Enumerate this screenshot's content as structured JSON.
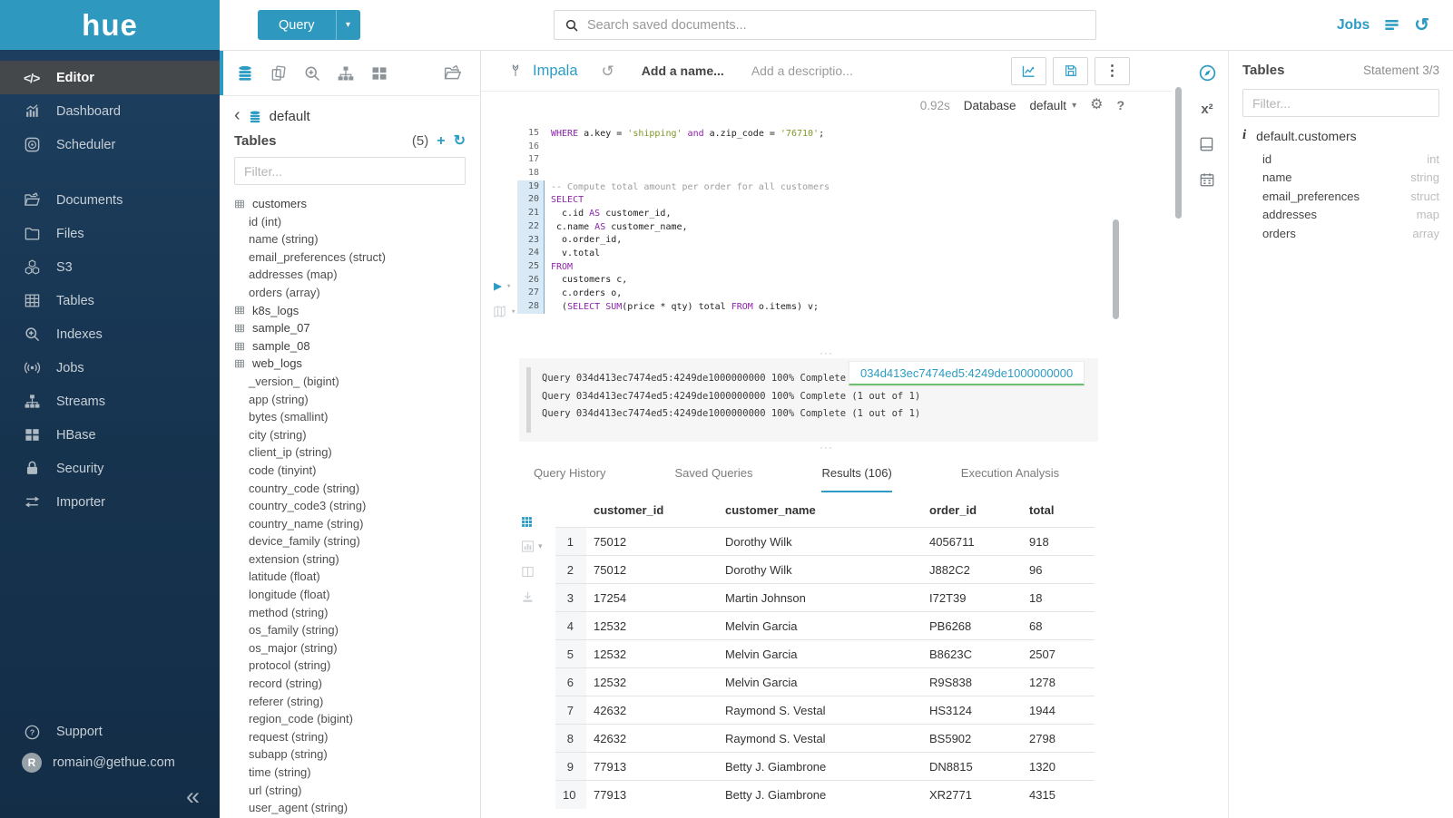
{
  "brand": {
    "logo_text": "hue"
  },
  "topbar": {
    "query_button_label": "Query",
    "search_placeholder": "Search saved documents...",
    "jobs_label": "Jobs"
  },
  "icons": {
    "code": "</>",
    "back": "‹",
    "collapse": "«",
    "plus": "+",
    "refresh": "↻",
    "caret": "▾",
    "play": "▶",
    "more": "⋮",
    "gear": "⚙",
    "help": "?",
    "history": "↺",
    "superscript": "x²",
    "info": "i",
    "dots": "···"
  },
  "sidebar": {
    "items": [
      {
        "label": "Editor",
        "icon": "code",
        "active": true
      },
      {
        "label": "Dashboard",
        "icon": "dashboard"
      },
      {
        "label": "Scheduler",
        "icon": "scheduler"
      },
      {
        "label": "Documents",
        "icon": "documents",
        "gap": true
      },
      {
        "label": "Files",
        "icon": "files"
      },
      {
        "label": "S3",
        "icon": "s3"
      },
      {
        "label": "Tables",
        "icon": "tables"
      },
      {
        "label": "Indexes",
        "icon": "indexes"
      },
      {
        "label": "Jobs",
        "icon": "jobs"
      },
      {
        "label": "Streams",
        "icon": "streams"
      },
      {
        "label": "HBase",
        "icon": "hbase"
      },
      {
        "label": "Security",
        "icon": "security"
      },
      {
        "label": "Importer",
        "icon": "importer"
      }
    ],
    "support_label": "Support",
    "user_email": "romain@gethue.com",
    "user_initial": "R"
  },
  "left_assist": {
    "database": "default",
    "section_title": "Tables",
    "count": "(5)",
    "filter_placeholder": "Filter...",
    "tree": [
      {
        "name": "customers",
        "columns": [
          "id (int)",
          "name (string)",
          "email_preferences (struct)",
          "addresses (map)",
          "orders (array)"
        ]
      },
      {
        "name": "k8s_logs",
        "columns": []
      },
      {
        "name": "sample_07",
        "columns": []
      },
      {
        "name": "sample_08",
        "columns": []
      },
      {
        "name": "web_logs",
        "columns": [
          "_version_ (bigint)",
          "app (string)",
          "bytes (smallint)",
          "city (string)",
          "client_ip (string)",
          "code (tinyint)",
          "country_code (string)",
          "country_code3 (string)",
          "country_name (string)",
          "device_family (string)",
          "extension (string)",
          "latitude (float)",
          "longitude (float)",
          "method (string)",
          "os_family (string)",
          "os_major (string)",
          "protocol (string)",
          "record (string)",
          "referer (string)",
          "region_code (bigint)",
          "request (string)",
          "subapp (string)",
          "time (string)",
          "url (string)",
          "user_agent (string)"
        ]
      }
    ]
  },
  "editor": {
    "engine": "Impala",
    "name_placeholder": "Add a name...",
    "description_placeholder": "Add a descriptio...",
    "exec_time": "0.92s",
    "database_label": "Database",
    "database_value": "default",
    "code": [
      {
        "n": "15",
        "hl": false,
        "segs": [
          [
            "kw",
            "WHERE"
          ],
          [
            "pl",
            " a.key = "
          ],
          [
            "str",
            "'shipping'"
          ],
          [
            "pl",
            " "
          ],
          [
            "kw",
            "and"
          ],
          [
            "pl",
            " a.zip_code = "
          ],
          [
            "str",
            "'76710'"
          ],
          [
            "pl",
            ";"
          ]
        ]
      },
      {
        "n": "16",
        "hl": false,
        "segs": []
      },
      {
        "n": "17",
        "hl": false,
        "segs": []
      },
      {
        "n": "18",
        "hl": false,
        "segs": []
      },
      {
        "n": "19",
        "hl": true,
        "segs": [
          [
            "cm",
            "-- Compute total amount per order for all customers"
          ]
        ]
      },
      {
        "n": "20",
        "hl": true,
        "segs": [
          [
            "kw",
            "SELECT"
          ]
        ]
      },
      {
        "n": "21",
        "hl": true,
        "segs": [
          [
            "pl",
            "  c.id "
          ],
          [
            "kw",
            "AS"
          ],
          [
            "pl",
            " customer_id,"
          ]
        ]
      },
      {
        "n": "22",
        "hl": true,
        "segs": [
          [
            "pl",
            " c.name "
          ],
          [
            "kw",
            "AS"
          ],
          [
            "pl",
            " customer_name,"
          ]
        ]
      },
      {
        "n": "23",
        "hl": true,
        "segs": [
          [
            "pl",
            "  o.order_id,"
          ]
        ]
      },
      {
        "n": "24",
        "hl": true,
        "segs": [
          [
            "pl",
            "  v.total"
          ]
        ]
      },
      {
        "n": "25",
        "hl": true,
        "segs": [
          [
            "kw",
            "FROM"
          ]
        ]
      },
      {
        "n": "26",
        "hl": true,
        "segs": [
          [
            "pl",
            "  customers c,"
          ]
        ]
      },
      {
        "n": "27",
        "hl": true,
        "segs": [
          [
            "pl",
            "  c.orders o,"
          ]
        ]
      },
      {
        "n": "28",
        "hl": true,
        "segs": [
          [
            "pl",
            "  ("
          ],
          [
            "kw",
            "SELECT"
          ],
          [
            "pl",
            " "
          ],
          [
            "kw",
            "SUM"
          ],
          [
            "pl",
            "(price * qty) total "
          ],
          [
            "kw",
            "FROM"
          ],
          [
            "pl",
            " o.items) v;"
          ]
        ]
      }
    ]
  },
  "log": {
    "lines": [
      "Query 034d413ec7474ed5:4249de1000000000 100% Complete (1 out of 1)",
      "Query 034d413ec7474ed5:4249de1000000000 100% Complete (1 out of 1)",
      "Query 034d413ec7474ed5:4249de1000000000 100% Complete (1 out of 1)"
    ],
    "tooltip": "034d413ec7474ed5:4249de1000000000"
  },
  "tabs": [
    {
      "label": "Query History",
      "active": false
    },
    {
      "label": "Saved Queries",
      "active": false
    },
    {
      "label": "Results (106)",
      "active": true
    },
    {
      "label": "Execution Analysis",
      "active": false
    }
  ],
  "results": {
    "columns": [
      "customer_id",
      "customer_name",
      "order_id",
      "total"
    ],
    "rows": [
      [
        "1",
        "75012",
        "Dorothy Wilk",
        "4056711",
        "918"
      ],
      [
        "2",
        "75012",
        "Dorothy Wilk",
        "J882C2",
        "96"
      ],
      [
        "3",
        "17254",
        "Martin Johnson",
        "I72T39",
        "18"
      ],
      [
        "4",
        "12532",
        "Melvin Garcia",
        "PB6268",
        "68"
      ],
      [
        "5",
        "12532",
        "Melvin Garcia",
        "B8623C",
        "2507"
      ],
      [
        "6",
        "12532",
        "Melvin Garcia",
        "R9S838",
        "1278"
      ],
      [
        "7",
        "42632",
        "Raymond S. Vestal",
        "HS3124",
        "1944"
      ],
      [
        "8",
        "42632",
        "Raymond S. Vestal",
        "BS5902",
        "2798"
      ],
      [
        "9",
        "77913",
        "Betty J. Giambrone",
        "DN8815",
        "1320"
      ],
      [
        "10",
        "77913",
        "Betty J. Giambrone",
        "XR2771",
        "4315"
      ]
    ]
  },
  "right_assist": {
    "title": "Tables",
    "statement": "Statement 3/3",
    "filter_placeholder": "Filter...",
    "table": "default.customers",
    "columns": [
      {
        "name": "id",
        "type": "int"
      },
      {
        "name": "name",
        "type": "string"
      },
      {
        "name": "email_preferences",
        "type": "struct"
      },
      {
        "name": "addresses",
        "type": "map"
      },
      {
        "name": "orders",
        "type": "array"
      }
    ]
  }
}
